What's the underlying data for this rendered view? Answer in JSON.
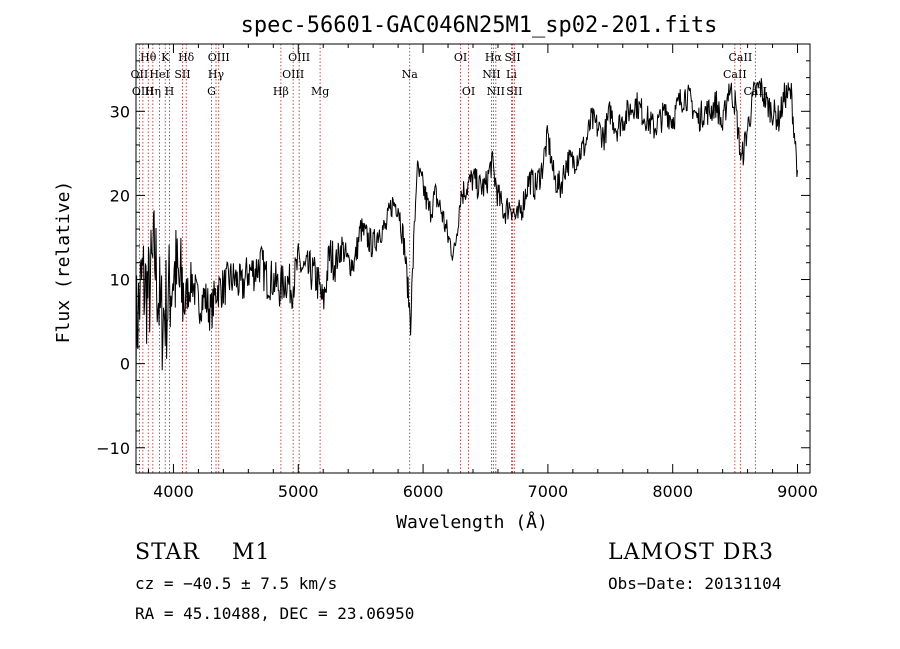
{
  "chart_data": {
    "type": "line",
    "title": "spec-56601-GAC046N25M1_sp02-201.fits",
    "xlabel": "Wavelength (Å)",
    "ylabel": "Flux (relative)",
    "xlim": [
      3700,
      9100
    ],
    "ylim": [
      -13,
      38
    ],
    "xticks": [
      4000,
      5000,
      6000,
      7000,
      8000,
      9000
    ],
    "yticks": [
      -10,
      0,
      10,
      20,
      30
    ],
    "series": [
      {
        "name": "flux",
        "x": [
          3700,
          3750,
          3800,
          3850,
          3900,
          3950,
          4000,
          4050,
          4100,
          4150,
          4200,
          4250,
          4300,
          4350,
          4400,
          4450,
          4500,
          4550,
          4600,
          4650,
          4700,
          4750,
          4800,
          4850,
          4900,
          4950,
          5000,
          5050,
          5100,
          5150,
          5200,
          5250,
          5300,
          5350,
          5400,
          5450,
          5500,
          5550,
          5600,
          5650,
          5700,
          5750,
          5800,
          5850,
          5900,
          5950,
          6000,
          6050,
          6100,
          6150,
          6200,
          6250,
          6300,
          6350,
          6400,
          6450,
          6500,
          6550,
          6600,
          6650,
          6700,
          6750,
          6800,
          6850,
          6900,
          6950,
          7000,
          7050,
          7100,
          7150,
          7200,
          7250,
          7300,
          7350,
          7400,
          7450,
          7500,
          7550,
          7600,
          7650,
          7700,
          7750,
          7800,
          7850,
          7900,
          7950,
          8000,
          8050,
          8100,
          8150,
          8200,
          8250,
          8300,
          8350,
          8400,
          8450,
          8500,
          8550,
          8600,
          8650,
          8700,
          8750,
          8800,
          8850,
          8900,
          8950,
          9000
        ],
        "y": [
          4,
          10,
          8,
          13,
          5,
          7,
          11,
          9,
          8,
          10,
          7,
          8,
          6,
          9,
          9,
          10,
          10,
          9,
          11,
          11,
          12,
          10,
          10,
          9,
          10,
          9,
          12,
          11,
          11,
          10,
          7,
          13,
          12,
          14,
          12,
          12,
          16,
          15,
          14,
          16,
          16,
          19,
          19,
          14,
          5,
          23,
          21,
          18,
          20,
          18,
          15,
          13,
          20,
          21,
          22,
          21,
          21,
          24,
          20,
          18,
          19,
          17,
          19,
          22,
          21,
          23,
          27,
          22,
          21,
          24,
          24,
          25,
          26,
          29,
          28,
          27,
          30,
          28,
          29,
          30,
          31,
          30,
          29,
          28,
          29,
          30,
          29,
          31,
          32,
          31,
          29,
          30,
          30,
          31,
          28,
          33,
          31,
          24,
          28,
          32,
          33,
          31,
          30,
          29,
          32,
          32,
          23
        ]
      }
    ],
    "spectral_lines": [
      {
        "label": "Hθ",
        "wavelength": 3798,
        "row": 0
      },
      {
        "label": "K",
        "wavelength": 3934,
        "row": 0
      },
      {
        "label": "Hδ",
        "wavelength": 4102,
        "row": 0
      },
      {
        "label": "OIII",
        "wavelength": 4363,
        "row": 0
      },
      {
        "label": "OIII",
        "wavelength": 5007,
        "row": 0
      },
      {
        "label": "OI",
        "wavelength": 6300,
        "row": 0
      },
      {
        "label": "Hα",
        "wavelength": 6563,
        "row": 0
      },
      {
        "label": "SII",
        "wavelength": 6717,
        "row": 0
      },
      {
        "label": "CaII",
        "wavelength": 8542,
        "row": 0
      },
      {
        "label": "OII",
        "wavelength": 3727,
        "row": 1
      },
      {
        "label": "HeI",
        "wavelength": 3889,
        "row": 1
      },
      {
        "label": "SII",
        "wavelength": 4072,
        "row": 1
      },
      {
        "label": "Hγ",
        "wavelength": 4341,
        "row": 1
      },
      {
        "label": "OIII",
        "wavelength": 4959,
        "row": 1
      },
      {
        "label": "NII",
        "wavelength": 6548,
        "row": 1
      },
      {
        "label": "Li",
        "wavelength": 6708,
        "row": 1
      },
      {
        "label": "CaII",
        "wavelength": 8498,
        "row": 1
      },
      {
        "label": "OIII",
        "wavelength": 3755,
        "row": 2
      },
      {
        "label": "Hη",
        "wavelength": 3835,
        "row": 2
      },
      {
        "label": "H",
        "wavelength": 3968,
        "row": 2
      },
      {
        "label": "G",
        "wavelength": 4305,
        "row": 2
      },
      {
        "label": "Hβ",
        "wavelength": 4861,
        "row": 2
      },
      {
        "label": "Mg",
        "wavelength": 5175,
        "row": 2
      },
      {
        "label": "Na",
        "wavelength": 5893,
        "row": 1
      },
      {
        "label": "OI",
        "wavelength": 6364,
        "row": 2
      },
      {
        "label": "NII",
        "wavelength": 6583,
        "row": 2
      },
      {
        "label": "SII",
        "wavelength": 6731,
        "row": 2
      },
      {
        "label": "CaII",
        "wavelength": 8662,
        "row": 2
      }
    ]
  },
  "info": {
    "object_type": "STAR",
    "subclass": "M1",
    "redshift": "cz = −40.5 ± 7.5 km/s",
    "coords": "RA =  45.10488, DEC =  23.06950",
    "survey": "LAMOST DR3",
    "obs_date": "Obs−Date: 20131104"
  }
}
